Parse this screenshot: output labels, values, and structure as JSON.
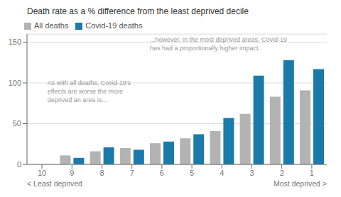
{
  "chart_data": {
    "type": "bar",
    "title": "Death rate as a % difference from the least deprived decile",
    "categories": [
      "10",
      "9",
      "8",
      "7",
      "6",
      "5",
      "4",
      "3",
      "2",
      "1"
    ],
    "series": [
      {
        "name": "All deaths",
        "color": "#b3b3b3",
        "values": [
          0,
          11,
          16,
          20,
          26,
          32,
          41,
          62,
          83,
          91
        ]
      },
      {
        "name": "Covid-19 deaths",
        "color": "#1a7aaa",
        "values": [
          0,
          8,
          21,
          18,
          28,
          37,
          57,
          109,
          128,
          117
        ]
      }
    ],
    "ylim": [
      0,
      160
    ],
    "yticks": [
      0,
      50,
      100,
      150
    ],
    "grid": true,
    "legend": "upper left",
    "annotations": [
      "As with all deaths, Covid-19's\neffects are worse the more\ndeprived an area is...",
      "...however, in the most deprived areas, Covid-19\nhas had a proportionally higher impact."
    ],
    "xlabel_left": "< Least deprived",
    "xlabel_right": "Most deprived >"
  }
}
